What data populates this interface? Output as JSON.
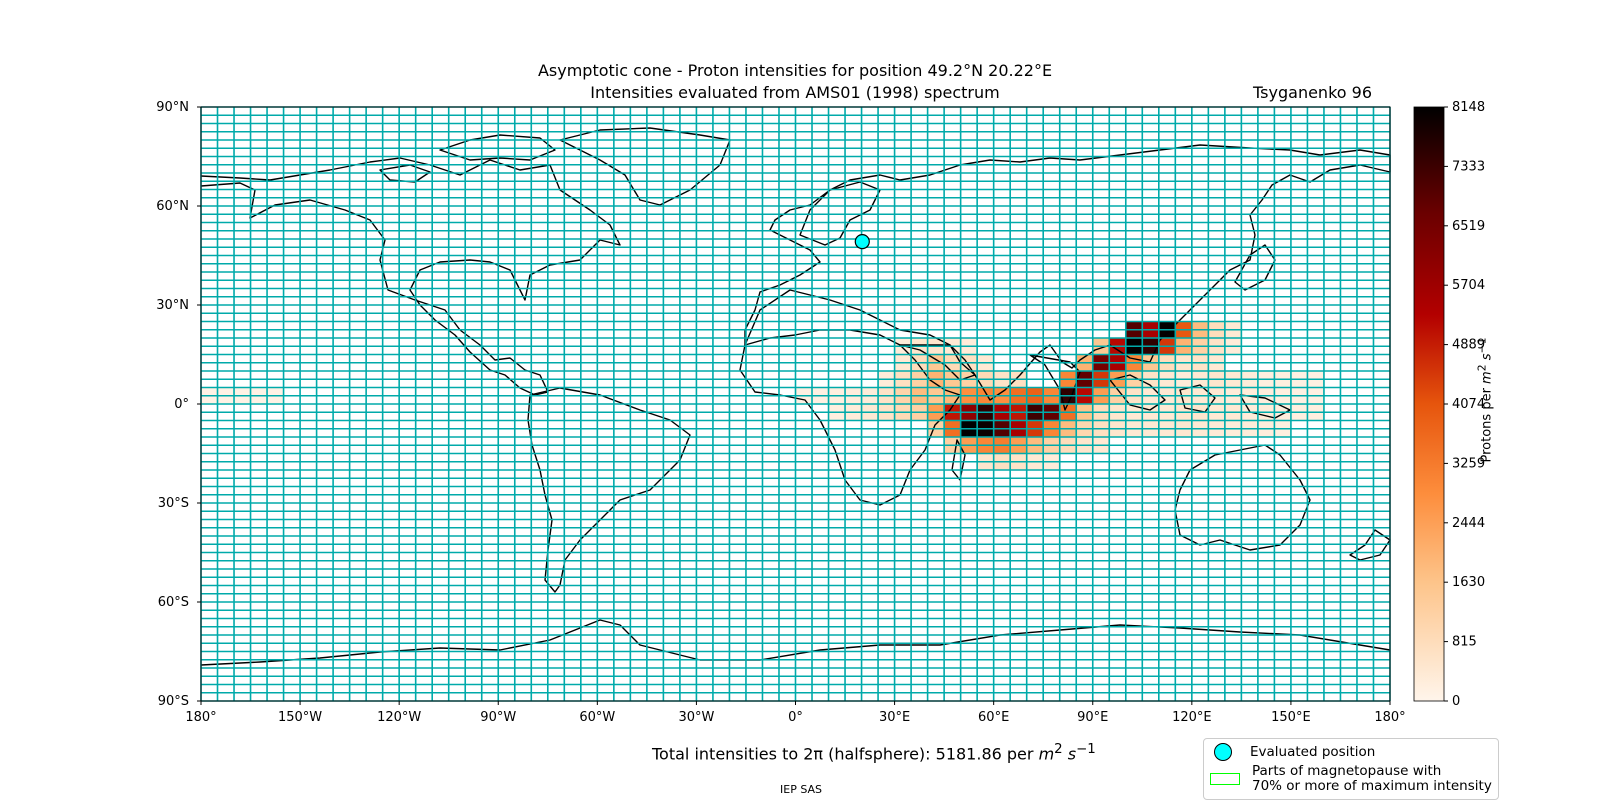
{
  "title_line1": "Asymptotic cone - Proton intensities for position 49.2°N 20.22°E",
  "title_line2": "Intensities evaluated from AMS01 (1998) spectrum",
  "model": "Tsyganenko 96",
  "evaluated_position": {
    "lat": 49.2,
    "lon": 20.22
  },
  "lat_ticks": [
    "90°N",
    "60°N",
    "30°N",
    "0°",
    "30°S",
    "60°S",
    "90°S"
  ],
  "lon_ticks": [
    "180°",
    "150°W",
    "120°W",
    "90°W",
    "60°W",
    "30°W",
    "0°",
    "30°E",
    "60°E",
    "90°E",
    "120°E",
    "150°E",
    "180°"
  ],
  "colorbar": {
    "label": "Protons per m² s⁻¹",
    "label_main": "Protons per ",
    "ticks": [
      "8148",
      "7333",
      "6519",
      "5704",
      "4889",
      "4074",
      "3259",
      "2444",
      "1630",
      "815",
      "0"
    ],
    "min": 0,
    "max": 8148
  },
  "total_text": "Total intensities to 2π (halfsphere): 5181.86 per m² s⁻¹",
  "total_main": "Total intensities to 2π (halfsphere): 5181.86 per ",
  "legend": {
    "evaluated": "Evaluated position",
    "magneto_line1": "Parts of magnetopause with",
    "magneto_line2": "70% or more of maximum intensity"
  },
  "footer": "IEP SAS",
  "colors": {
    "grid": "#00aaaa",
    "marker": "#00ffff",
    "coast": "#000000",
    "magnetopause": "#00ff00"
  },
  "chart_data": {
    "type": "heatmap",
    "xlim": [
      -180,
      180
    ],
    "ylim": [
      -90,
      90
    ],
    "cell_deg": [
      5,
      5
    ],
    "value_max": 8148,
    "cells": [
      [
        100,
        20,
        7000
      ],
      [
        105,
        20,
        5500
      ],
      [
        110,
        20,
        8100
      ],
      [
        115,
        20,
        4000
      ],
      [
        120,
        20,
        1800
      ],
      [
        125,
        20,
        800
      ],
      [
        130,
        20,
        400
      ],
      [
        90,
        15,
        1500
      ],
      [
        95,
        15,
        5200
      ],
      [
        100,
        15,
        8148
      ],
      [
        105,
        15,
        7500
      ],
      [
        110,
        15,
        4500
      ],
      [
        115,
        15,
        2000
      ],
      [
        120,
        15,
        1200
      ],
      [
        125,
        15,
        600
      ],
      [
        130,
        15,
        300
      ],
      [
        30,
        15,
        300
      ],
      [
        35,
        15,
        500
      ],
      [
        40,
        15,
        500
      ],
      [
        45,
        15,
        400
      ],
      [
        50,
        15,
        300
      ],
      [
        85,
        10,
        2000
      ],
      [
        90,
        10,
        6500
      ],
      [
        95,
        10,
        5500
      ],
      [
        100,
        10,
        3000
      ],
      [
        105,
        10,
        1500
      ],
      [
        110,
        10,
        800
      ],
      [
        115,
        10,
        500
      ],
      [
        120,
        10,
        600
      ],
      [
        125,
        10,
        400
      ],
      [
        30,
        10,
        400
      ],
      [
        35,
        10,
        800
      ],
      [
        40,
        10,
        1500
      ],
      [
        45,
        10,
        900
      ],
      [
        50,
        10,
        700
      ],
      [
        55,
        10,
        400
      ],
      [
        80,
        5,
        3000
      ],
      [
        85,
        5,
        6800
      ],
      [
        90,
        5,
        4500
      ],
      [
        95,
        5,
        2500
      ],
      [
        100,
        5,
        1200
      ],
      [
        105,
        5,
        600
      ],
      [
        110,
        5,
        400
      ],
      [
        115,
        5,
        300
      ],
      [
        120,
        5,
        400
      ],
      [
        125,
        5,
        500
      ],
      [
        130,
        5,
        400
      ],
      [
        135,
        5,
        300
      ],
      [
        140,
        5,
        200
      ],
      [
        145,
        5,
        200
      ],
      [
        150,
        5,
        150
      ],
      [
        155,
        5,
        150
      ],
      [
        25,
        5,
        300
      ],
      [
        30,
        5,
        700
      ],
      [
        35,
        5,
        1200
      ],
      [
        40,
        5,
        2000
      ],
      [
        45,
        5,
        1500
      ],
      [
        50,
        5,
        1200
      ],
      [
        55,
        5,
        900
      ],
      [
        60,
        5,
        600
      ],
      [
        65,
        5,
        700
      ],
      [
        75,
        0,
        3000
      ],
      [
        80,
        0,
        7500
      ],
      [
        85,
        0,
        5200
      ],
      [
        90,
        0,
        2500
      ],
      [
        95,
        0,
        1200
      ],
      [
        100,
        0,
        600
      ],
      [
        105,
        0,
        400
      ],
      [
        110,
        0,
        400
      ],
      [
        115,
        0,
        500
      ],
      [
        120,
        0,
        400
      ],
      [
        125,
        0,
        400
      ],
      [
        130,
        0,
        300
      ],
      [
        135,
        0,
        300
      ],
      [
        140,
        0,
        250
      ],
      [
        145,
        0,
        200
      ],
      [
        150,
        0,
        150
      ],
      [
        155,
        0,
        150
      ],
      [
        0,
        0,
        150
      ],
      [
        5,
        0,
        150
      ],
      [
        10,
        0,
        200
      ],
      [
        15,
        0,
        250
      ],
      [
        20,
        0,
        300
      ],
      [
        25,
        0,
        600
      ],
      [
        30,
        0,
        1100
      ],
      [
        35,
        0,
        1800
      ],
      [
        40,
        0,
        1500
      ],
      [
        45,
        0,
        1900
      ],
      [
        50,
        0,
        2800
      ],
      [
        55,
        0,
        3000
      ],
      [
        60,
        0,
        2800
      ],
      [
        65,
        0,
        3500
      ],
      [
        70,
        0,
        3800
      ],
      [
        -180,
        0,
        100
      ],
      [
        -175,
        0,
        100
      ],
      [
        -170,
        0,
        100
      ],
      [
        -165,
        0,
        100
      ],
      [
        -160,
        0,
        100
      ],
      [
        70,
        -5,
        7300
      ],
      [
        75,
        -5,
        6800
      ],
      [
        80,
        -5,
        3500
      ],
      [
        85,
        -5,
        1600
      ],
      [
        90,
        -5,
        800
      ],
      [
        95,
        -5,
        500
      ],
      [
        100,
        -5,
        400
      ],
      [
        105,
        -5,
        400
      ],
      [
        110,
        -5,
        400
      ],
      [
        115,
        -5,
        500
      ],
      [
        120,
        -5,
        500
      ],
      [
        125,
        -5,
        400
      ],
      [
        130,
        -5,
        400
      ],
      [
        135,
        -5,
        300
      ],
      [
        140,
        -5,
        300
      ],
      [
        145,
        -5,
        250
      ],
      [
        150,
        -5,
        200
      ],
      [
        155,
        -5,
        200
      ],
      [
        10,
        -5,
        200
      ],
      [
        15,
        -5,
        300
      ],
      [
        20,
        -5,
        400
      ],
      [
        25,
        -5,
        600
      ],
      [
        30,
        -5,
        900
      ],
      [
        35,
        -5,
        1200
      ],
      [
        40,
        -5,
        2500
      ],
      [
        45,
        -5,
        5000
      ],
      [
        50,
        -5,
        6000
      ],
      [
        55,
        -5,
        7500
      ],
      [
        60,
        -5,
        5500
      ],
      [
        65,
        -5,
        5000
      ],
      [
        40,
        -10,
        1200
      ],
      [
        45,
        -10,
        3500
      ],
      [
        50,
        -10,
        8148
      ],
      [
        55,
        -10,
        8000
      ],
      [
        60,
        -10,
        7000
      ],
      [
        65,
        -10,
        5500
      ],
      [
        70,
        -10,
        4500
      ],
      [
        75,
        -10,
        3000
      ],
      [
        80,
        -10,
        1800
      ],
      [
        85,
        -10,
        1000
      ],
      [
        90,
        -10,
        700
      ],
      [
        95,
        -10,
        500
      ],
      [
        100,
        -10,
        400
      ],
      [
        105,
        -10,
        400
      ],
      [
        110,
        -10,
        400
      ],
      [
        115,
        -10,
        450
      ],
      [
        120,
        -10,
        400
      ],
      [
        125,
        -10,
        350
      ],
      [
        130,
        -10,
        300
      ],
      [
        135,
        -10,
        300
      ],
      [
        140,
        -10,
        250
      ],
      [
        145,
        -10,
        200
      ],
      [
        45,
        -15,
        1200
      ],
      [
        50,
        -15,
        2500
      ],
      [
        55,
        -15,
        3000
      ],
      [
        60,
        -15,
        3200
      ],
      [
        65,
        -15,
        2500
      ],
      [
        70,
        -15,
        1800
      ],
      [
        75,
        -15,
        1200
      ],
      [
        80,
        -15,
        800
      ],
      [
        85,
        -15,
        500
      ],
      [
        90,
        -15,
        400
      ],
      [
        55,
        -20,
        500
      ],
      [
        60,
        -20,
        700
      ],
      [
        65,
        -20,
        600
      ],
      [
        70,
        -20,
        400
      ],
      [
        75,
        -20,
        300
      ]
    ]
  }
}
